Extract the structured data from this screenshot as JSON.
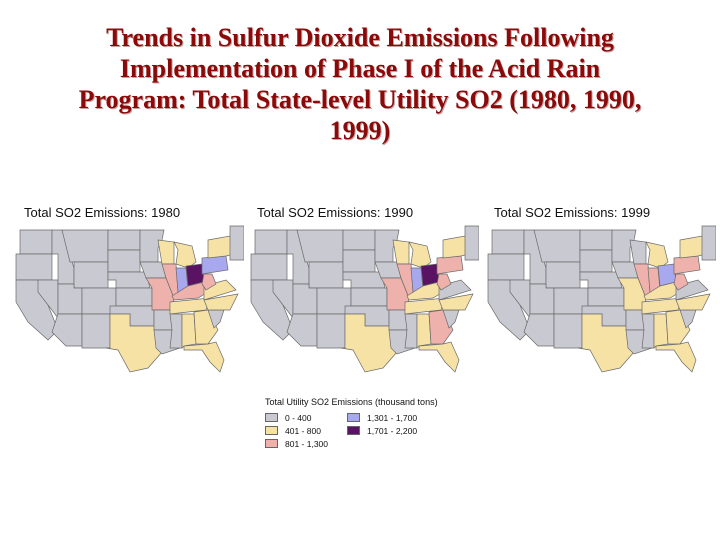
{
  "title": {
    "lines": [
      "Trends in Sulfur Dioxide Emissions Following",
      "Implementation of Phase I of the Acid Rain",
      "Program: Total State-level Utility SO2 (1980, 1990,",
      "1999)"
    ]
  },
  "colors": {
    "title": "#8a0a0a",
    "tier_0_400": "#c9c9d1",
    "tier_401_800": "#f7e2a6",
    "tier_801_1300": "#efb1ac",
    "tier_1301_1700": "#a8a8ee",
    "tier_1701_2200": "#5a1262",
    "border": "#6a6a6a"
  },
  "maps": [
    {
      "label": "Total SO2 Emissions: 1980",
      "year": "1980",
      "state_tiers": {
        "OH": "1701 - 2,200",
        "PA": "1,301 - 1,700",
        "IN": "1,301 - 1,700",
        "IL": "801 - 1,300",
        "MO": "801 - 1,300",
        "KY": "801 - 1,300",
        "WV": "801 - 1,300",
        "TN": "401 - 800",
        "GA": "401 - 800",
        "AL": "401 - 800",
        "FL": "401 - 800",
        "NC": "401 - 800",
        "VA": "401 - 800",
        "MI": "401 - 800",
        "WI": "401 - 800",
        "NY": "401 - 800",
        "TX": "401 - 800"
      }
    },
    {
      "label": "Total SO2 Emissions: 1990",
      "year": "1990",
      "state_tiers": {
        "OH": "1701 - 2,200",
        "IN": "1,301 - 1,700",
        "PA": "801 - 1,300",
        "IL": "801 - 1,300",
        "MO": "801 - 1,300",
        "WV": "801 - 1,300",
        "KY": "401 - 800",
        "TN": "401 - 800",
        "GA": "801 - 1,300",
        "AL": "401 - 800",
        "FL": "401 - 800",
        "NC": "401 - 800",
        "MI": "401 - 800",
        "WI": "401 - 800",
        "TX": "401 - 800",
        "NY": "401 - 800"
      }
    },
    {
      "label": "Total SO2 Emissions: 1999",
      "year": "1999",
      "state_tiers": {
        "OH": "1,301 - 1,700",
        "PA": "801 - 1,300",
        "IN": "801 - 1,300",
        "IL": "801 - 1,300",
        "WV": "801 - 1,300",
        "KY": "401 - 800",
        "TN": "401 - 800",
        "GA": "401 - 800",
        "AL": "401 - 800",
        "FL": "401 - 800",
        "NC": "401 - 800",
        "MO": "401 - 800",
        "MI": "401 - 800",
        "TX": "401 - 800",
        "NY": "401 - 800"
      }
    }
  ],
  "legend": {
    "title": "Total Utility SO2 Emissions (thousand tons)",
    "items": [
      {
        "label": "0 - 400",
        "color": "#c9c9d1"
      },
      {
        "label": "401 - 800",
        "color": "#f7e2a6"
      },
      {
        "label": "801 - 1,300",
        "color": "#efb1ac"
      },
      {
        "label": "1,301 - 1,700",
        "color": "#a8a8ee"
      },
      {
        "label": "1,701 - 2,200",
        "color": "#5a1262"
      }
    ]
  }
}
